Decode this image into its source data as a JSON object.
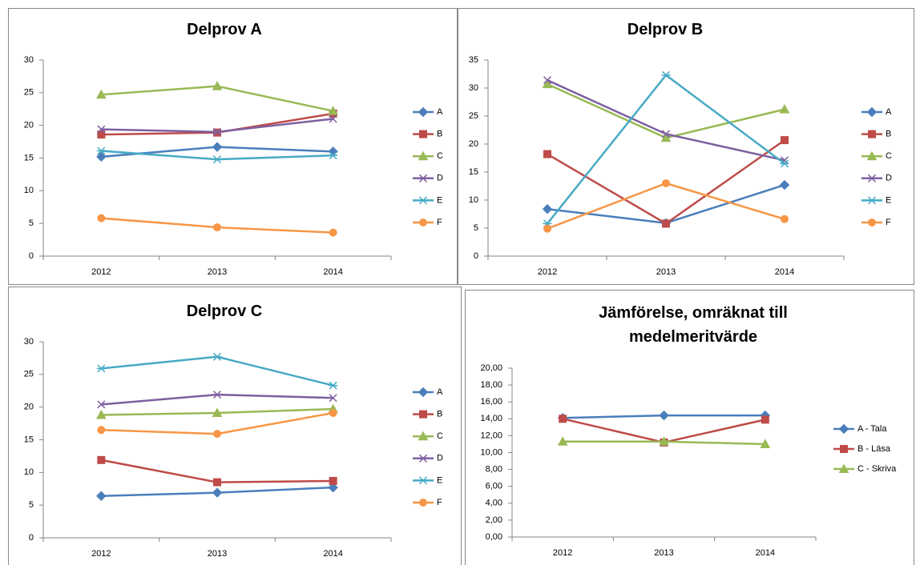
{
  "chart_data": [
    {
      "type": "line",
      "title": "Delprov A",
      "categories": [
        "2012",
        "2013",
        "2014"
      ],
      "ylim": [
        0,
        30
      ],
      "yticks": [
        0,
        5,
        10,
        15,
        20,
        25,
        30
      ],
      "grid": false,
      "series": [
        {
          "name": "A",
          "color": "#4a7ebb",
          "marker": "diamond",
          "values": [
            15.2,
            16.7,
            16.0
          ]
        },
        {
          "name": "B",
          "color": "#be4b48",
          "marker": "square",
          "values": [
            18.6,
            18.9,
            21.8
          ]
        },
        {
          "name": "C",
          "color": "#98b954",
          "marker": "triangle",
          "values": [
            24.7,
            26.0,
            22.2
          ]
        },
        {
          "name": "D",
          "color": "#7d60a0",
          "marker": "x",
          "values": [
            19.4,
            19.0,
            21.0
          ]
        },
        {
          "name": "E",
          "color": "#46aac5",
          "marker": "star",
          "values": [
            16.1,
            14.8,
            15.4
          ]
        },
        {
          "name": "F",
          "color": "#f79646",
          "marker": "circle",
          "values": [
            5.8,
            4.4,
            3.6
          ]
        }
      ]
    },
    {
      "type": "line",
      "title": "Delprov B",
      "categories": [
        "2012",
        "2013",
        "2014"
      ],
      "ylim": [
        0,
        35
      ],
      "yticks": [
        0,
        5,
        10,
        15,
        20,
        25,
        30,
        35
      ],
      "grid": false,
      "series": [
        {
          "name": "A",
          "color": "#4a7ebb",
          "marker": "diamond",
          "values": [
            8.4,
            5.9,
            12.7
          ]
        },
        {
          "name": "B",
          "color": "#be4b48",
          "marker": "square",
          "values": [
            18.2,
            5.8,
            20.7
          ]
        },
        {
          "name": "C",
          "color": "#98b954",
          "marker": "triangle",
          "values": [
            30.7,
            21.1,
            26.2
          ]
        },
        {
          "name": "D",
          "color": "#7d60a0",
          "marker": "x",
          "values": [
            31.4,
            21.8,
            17.1
          ]
        },
        {
          "name": "E",
          "color": "#46aac5",
          "marker": "star",
          "values": [
            5.8,
            32.3,
            16.5
          ]
        },
        {
          "name": "F",
          "color": "#f79646",
          "marker": "circle",
          "values": [
            4.9,
            13.0,
            6.6
          ]
        }
      ]
    },
    {
      "type": "line",
      "title": "Delprov C",
      "categories": [
        "2012",
        "2013",
        "2014"
      ],
      "ylim": [
        0,
        30
      ],
      "yticks": [
        0,
        5,
        10,
        15,
        20,
        25,
        30
      ],
      "grid": false,
      "series": [
        {
          "name": "A",
          "color": "#4a7ebb",
          "marker": "diamond",
          "values": [
            6.4,
            6.9,
            7.7
          ]
        },
        {
          "name": "B",
          "color": "#be4b48",
          "marker": "square",
          "values": [
            11.9,
            8.5,
            8.7
          ]
        },
        {
          "name": "C",
          "color": "#98b954",
          "marker": "triangle",
          "values": [
            18.8,
            19.1,
            19.7
          ]
        },
        {
          "name": "D",
          "color": "#7d60a0",
          "marker": "x",
          "values": [
            20.4,
            21.9,
            21.4
          ]
        },
        {
          "name": "E",
          "color": "#46aac5",
          "marker": "star",
          "values": [
            25.9,
            27.7,
            23.3
          ]
        },
        {
          "name": "F",
          "color": "#f79646",
          "marker": "circle",
          "values": [
            16.5,
            15.9,
            19.1
          ]
        }
      ]
    },
    {
      "type": "line",
      "title": "Jämförelse, omräknat till medelmeritvärde",
      "categories": [
        "2012",
        "2013",
        "2014"
      ],
      "ylim": [
        0,
        20
      ],
      "grid": false,
      "yticks": [
        {
          "value": 0,
          "label": "0,00"
        },
        {
          "value": 2,
          "label": "2,00"
        },
        {
          "value": 4,
          "label": "4,00"
        },
        {
          "value": 6,
          "label": "6,00"
        },
        {
          "value": 8,
          "label": "8,00"
        },
        {
          "value": 10,
          "label": "10,00"
        },
        {
          "value": 12,
          "label": "12,00"
        },
        {
          "value": 14,
          "label": "14,00"
        },
        {
          "value": 16,
          "label": "16,00"
        },
        {
          "value": 18,
          "label": "18,00"
        },
        {
          "value": 20,
          "label": "20,00"
        }
      ],
      "series": [
        {
          "name": "A - Tala",
          "color": "#4a7ebb",
          "marker": "diamond",
          "values": [
            14.1,
            14.4,
            14.4
          ]
        },
        {
          "name": "B - Läsa",
          "color": "#be4b48",
          "marker": "square",
          "values": [
            14.0,
            11.2,
            13.9
          ]
        },
        {
          "name": "C - Skriva",
          "color": "#98b954",
          "marker": "triangle",
          "values": [
            11.3,
            11.3,
            11.0
          ]
        }
      ]
    }
  ]
}
